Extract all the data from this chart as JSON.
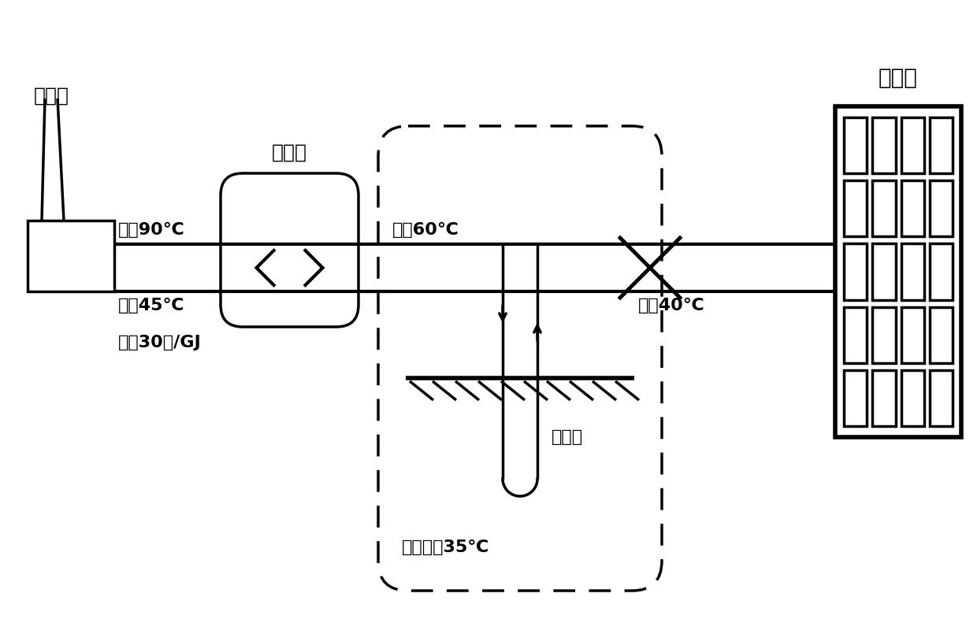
{
  "bg_color": "#ffffff",
  "line_color": "#000000",
  "texts": {
    "redian_chang": "热电厂",
    "jianzhuwu": "建筑物",
    "huanrexhan": "换热站",
    "gongshui90": "供水90℃",
    "huishui45": "回水45℃",
    "rejia": "热价30元/GJ",
    "gongshui60": "供水60℃",
    "huishui40": "回水40℃",
    "dili_guan": "地埋管",
    "dixia_wendu": "地下温度35℃"
  },
  "figsize": [
    12.4,
    7.91
  ],
  "dpi": 100
}
